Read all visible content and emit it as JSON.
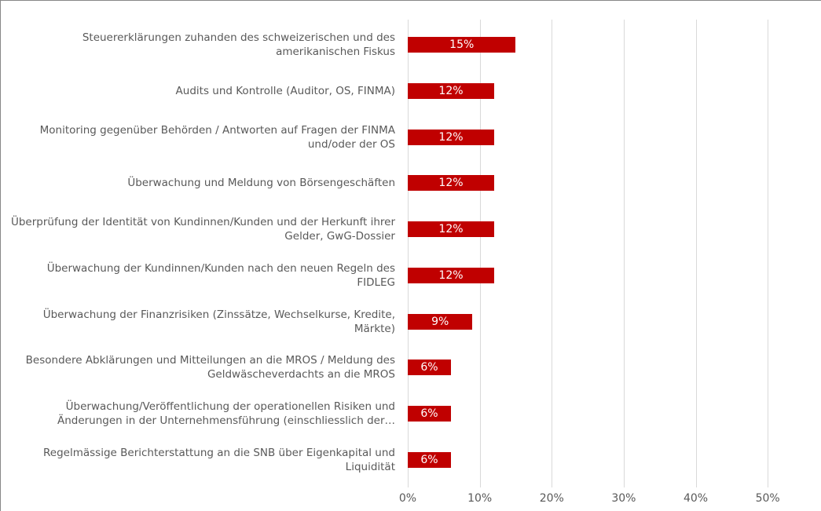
{
  "chart_data": {
    "type": "barh",
    "categories": [
      "Steuererklärungen zuhanden des schweizerischen und des amerikanischen Fiskus",
      "Audits und Kontrolle (Auditor, OS, FINMA)",
      "Monitoring gegenüber Behörden / Antworten auf Fragen der FINMA und/oder der OS",
      "Überwachung und Meldung von Börsengeschäften",
      "Überprüfung der Identität von Kundinnen/Kunden und der Herkunft ihrer Gelder, GwG-Dossier",
      "Überwachung der Kundinnen/Kunden nach den neuen Regeln des FIDLEG",
      "Überwachung der Finanzrisiken (Zinssätze, Wechselkurse, Kredite, Märkte)",
      "Besondere Abklärungen und Mitteilungen an die MROS / Meldung des Geldwäscheverdachts an die MROS",
      "Überwachung/Veröffentlichung der operationellen Risiken und Änderungen in der Unternehmensführung (einschliesslich der…",
      "Regelmässige Berichterstattung an die SNB über Eigenkapital und Liquidität"
    ],
    "values": [
      15,
      12,
      12,
      12,
      12,
      12,
      9,
      6,
      6,
      6
    ],
    "value_labels": [
      "15%",
      "12%",
      "12%",
      "12%",
      "12%",
      "12%",
      "9%",
      "6%",
      "6%",
      "6%"
    ],
    "color": "#c00000",
    "xlim": [
      0,
      55
    ],
    "xticks": [
      {
        "value": 0,
        "label": "0%"
      },
      {
        "value": 10,
        "label": "10%"
      },
      {
        "value": 20,
        "label": "20%"
      },
      {
        "value": 30,
        "label": "30%"
      },
      {
        "value": 40,
        "label": "40%"
      },
      {
        "value": 50,
        "label": "50%"
      }
    ],
    "grid": true
  }
}
